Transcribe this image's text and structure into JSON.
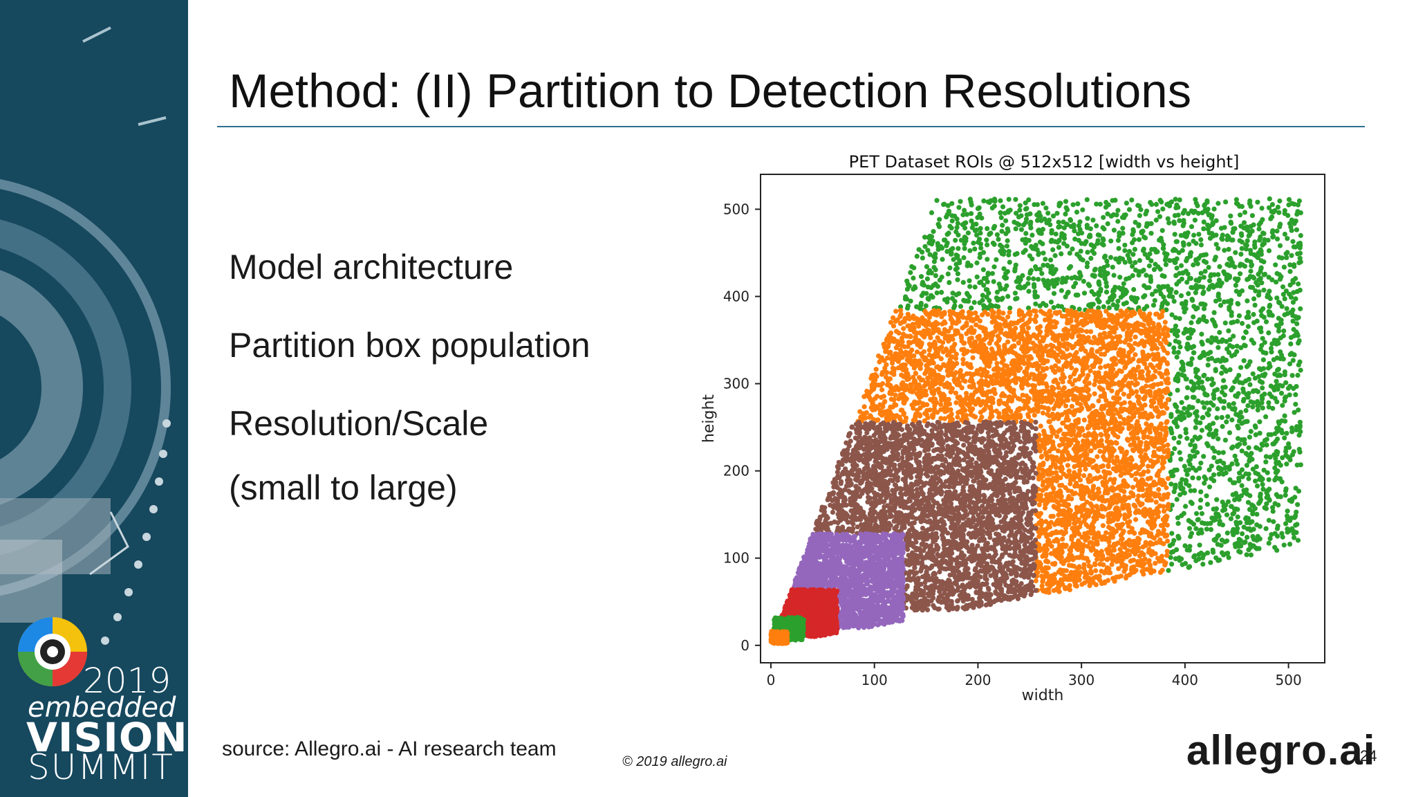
{
  "slide": {
    "title": "Method: (II) Partition to Detection Resolutions",
    "bullets": [
      "Model architecture",
      "Partition box population",
      "Resolution/Scale",
      "(small to large)"
    ],
    "source": "source: Allegro.ai - AI research team",
    "copyright": "© 2019 allegro.ai",
    "logo_text": "allegro.ai",
    "page_number": "24",
    "colors": {
      "sidebar": "#16485e",
      "title_rule": "#2e6f8e"
    }
  },
  "branding": {
    "year": "2019",
    "line1": "embedded",
    "line2": "VISION",
    "line3": "SUMMIT"
  },
  "chart_data": {
    "type": "scatter",
    "title": "PET Dataset ROIs @ 512x512 [width vs height]",
    "xlabel": "width",
    "ylabel": "height",
    "xlim": [
      -10,
      535
    ],
    "ylim": [
      -20,
      540
    ],
    "xticks": [
      0,
      100,
      200,
      300,
      400,
      500
    ],
    "yticks": [
      0,
      100,
      200,
      300,
      400,
      500
    ],
    "grid": false,
    "legend": "none",
    "series": [
      {
        "color": "#2ca02c",
        "region": {
          "x": [
            95,
            512
          ],
          "y": [
            20,
            512
          ]
        },
        "diag": true,
        "hole": {
          "x": 0,
          "y": 0,
          "w": 384,
          "h": 384
        },
        "count": 2200
      },
      {
        "color": "#ff7f0e",
        "region": {
          "x": [
            55,
            384
          ],
          "y": [
            60,
            384
          ]
        },
        "diag": true,
        "hole": {
          "x": 0,
          "y": 0,
          "w": 256,
          "h": 256
        },
        "count": 3800
      },
      {
        "color": "#8c564b",
        "region": {
          "x": [
            35,
            256
          ],
          "y": [
            40,
            256
          ]
        },
        "diag": true,
        "hole": {
          "x": 0,
          "y": 0,
          "w": 128,
          "h": 128
        },
        "count": 3200
      },
      {
        "color": "#9467bd",
        "region": {
          "x": [
            15,
            128
          ],
          "y": [
            20,
            128
          ]
        },
        "diag": true,
        "hole": {
          "x": 0,
          "y": 0,
          "w": 64,
          "h": 64
        },
        "count": 1800
      },
      {
        "color": "#d62728",
        "region": {
          "x": [
            5,
            64
          ],
          "y": [
            10,
            64
          ]
        },
        "diag": true,
        "hole": {
          "x": 0,
          "y": 0,
          "w": 32,
          "h": 32
        },
        "count": 1000
      },
      {
        "color": "#2ca02c",
        "region": {
          "x": [
            3,
            32
          ],
          "y": [
            6,
            32
          ]
        },
        "diag": false,
        "hole": {
          "x": 0,
          "y": 0,
          "w": 16,
          "h": 16
        },
        "count": 350
      },
      {
        "color": "#ff7f0e",
        "region": {
          "x": [
            0,
            16
          ],
          "y": [
            2,
            16
          ]
        },
        "diag": false,
        "hole": null,
        "count": 250
      }
    ]
  }
}
